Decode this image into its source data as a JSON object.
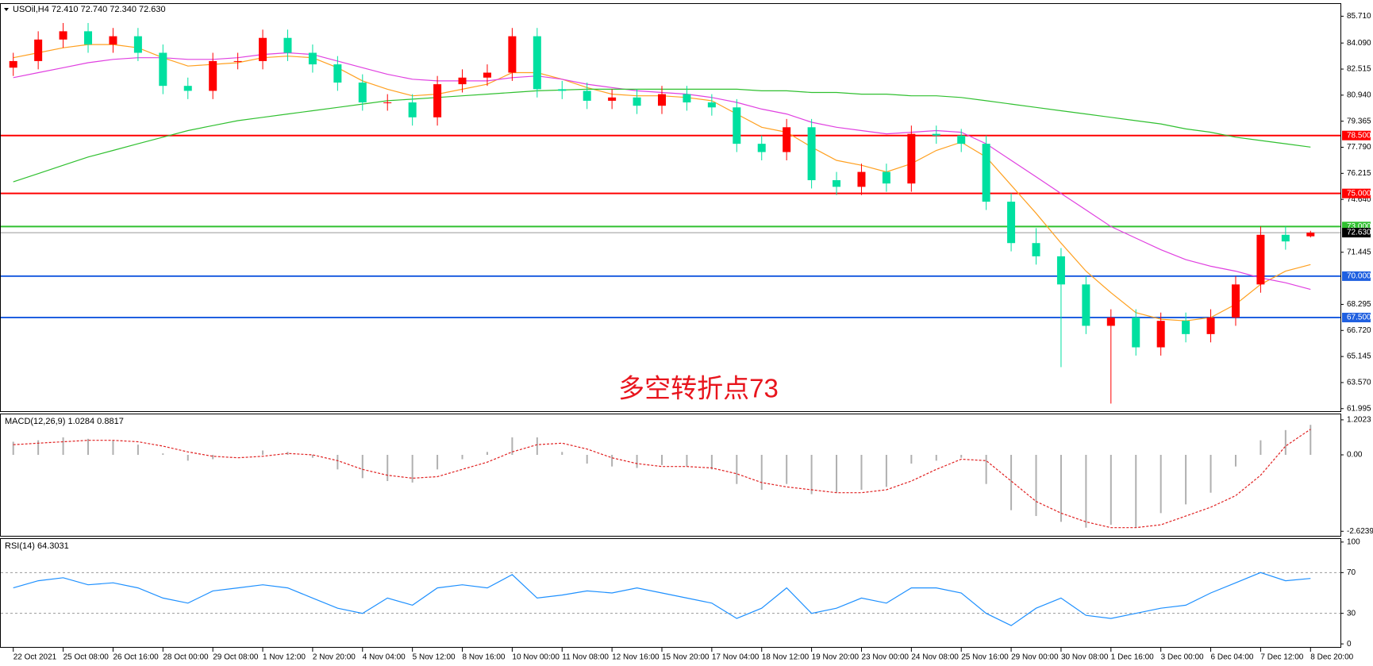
{
  "chart_data": [
    {
      "type": "candlestick",
      "title": "USOil,H4  72.410 72.740 72.340 72.630",
      "annotation": "多空转折点73",
      "up_color": "#ff0000",
      "down_color": "#00e0a0",
      "open": [
        82.6,
        83.0,
        84.3,
        84.8,
        84.0,
        84.5,
        83.5,
        81.5,
        81.2,
        83.0,
        83.0,
        84.4,
        83.5,
        82.8,
        81.7,
        80.5,
        80.5,
        79.6,
        81.6,
        82.0,
        82.3,
        84.5,
        81.3,
        81.2,
        80.6,
        80.8,
        80.3,
        81.0,
        80.5,
        80.2,
        78.0,
        77.5,
        79.0,
        75.8,
        75.4,
        76.3,
        75.6,
        78.6,
        78.5,
        78.0,
        74.5,
        72.0,
        71.2,
        69.5,
        67.0,
        67.5,
        65.7,
        67.3,
        66.5,
        67.5,
        69.5,
        72.5,
        72.41
      ],
      "high": [
        83.5,
        84.8,
        85.3,
        85.3,
        85.0,
        85.0,
        84.0,
        82.0,
        83.5,
        83.5,
        84.9,
        84.9,
        84.0,
        83.3,
        82.2,
        81.0,
        81.0,
        82.1,
        82.5,
        82.8,
        85.0,
        85.0,
        81.8,
        81.7,
        81.3,
        81.3,
        81.5,
        81.5,
        81.0,
        80.7,
        78.5,
        79.5,
        79.5,
        76.3,
        76.8,
        76.8,
        79.1,
        79.1,
        78.9,
        78.5,
        75.0,
        72.9,
        71.7,
        70.0,
        68.0,
        68.0,
        67.8,
        67.8,
        68.0,
        70.0,
        73.0,
        73.0,
        72.74
      ],
      "low": [
        82.1,
        82.5,
        83.8,
        83.5,
        83.5,
        83.0,
        81.0,
        80.7,
        80.7,
        82.5,
        82.5,
        83.0,
        82.3,
        81.2,
        80.0,
        80.0,
        79.1,
        79.1,
        81.1,
        81.5,
        81.8,
        80.8,
        80.7,
        80.1,
        80.1,
        79.8,
        79.8,
        80.0,
        79.7,
        77.5,
        77.0,
        77.0,
        75.3,
        74.9,
        74.9,
        75.1,
        75.1,
        78.0,
        77.5,
        74.0,
        71.5,
        70.7,
        64.5,
        66.5,
        62.3,
        65.2,
        65.2,
        66.0,
        66.0,
        67.0,
        69.0,
        71.6,
        72.34
      ],
      "close": [
        83.0,
        84.3,
        84.8,
        84.0,
        84.5,
        83.5,
        81.5,
        81.2,
        83.0,
        83.0,
        84.4,
        83.5,
        82.8,
        81.7,
        80.5,
        80.5,
        79.6,
        81.6,
        82.0,
        82.3,
        84.5,
        81.3,
        81.2,
        80.6,
        80.8,
        80.3,
        81.0,
        80.5,
        80.2,
        78.0,
        77.5,
        79.0,
        75.8,
        75.4,
        76.3,
        75.6,
        78.6,
        78.5,
        78.0,
        74.5,
        72.0,
        71.2,
        69.5,
        67.0,
        67.5,
        65.7,
        67.3,
        66.5,
        67.5,
        69.5,
        72.5,
        72.1,
        72.63
      ],
      "series": [
        {
          "color": "#ffa020",
          "values": [
            83.2,
            83.5,
            83.8,
            84.0,
            84.0,
            83.8,
            83.2,
            82.7,
            82.8,
            82.9,
            83.2,
            83.3,
            83.2,
            82.6,
            81.8,
            81.3,
            80.9,
            81.0,
            81.3,
            81.6,
            82.3,
            82.3,
            81.9,
            81.4,
            81.0,
            80.9,
            80.9,
            80.8,
            80.6,
            79.8,
            79.0,
            78.7,
            77.8,
            77.0,
            76.7,
            76.3,
            76.8,
            77.6,
            78.1,
            77.2,
            75.5,
            73.8,
            72.0,
            70.3,
            69.0,
            67.8,
            67.4,
            67.3,
            67.5,
            68.3,
            69.5,
            70.3,
            70.7
          ]
        },
        {
          "color": "#e040e0",
          "values": [
            82.0,
            82.3,
            82.6,
            82.9,
            83.1,
            83.2,
            83.2,
            83.1,
            83.1,
            83.2,
            83.4,
            83.5,
            83.4,
            83.0,
            82.6,
            82.2,
            81.9,
            81.8,
            81.8,
            81.8,
            82.0,
            82.1,
            81.9,
            81.6,
            81.4,
            81.2,
            81.1,
            81.0,
            80.8,
            80.5,
            80.1,
            79.8,
            79.3,
            79.0,
            78.8,
            78.6,
            78.7,
            78.8,
            78.7,
            78.0,
            77.0,
            76.0,
            75.0,
            74.0,
            73.0,
            72.3,
            71.6,
            71.0,
            70.6,
            70.3,
            69.9,
            69.6,
            69.2
          ]
        },
        {
          "color": "#30c030",
          "values": [
            75.7,
            76.2,
            76.7,
            77.2,
            77.6,
            78.0,
            78.4,
            78.8,
            79.1,
            79.4,
            79.6,
            79.8,
            80.0,
            80.2,
            80.4,
            80.6,
            80.7,
            80.8,
            80.9,
            81.0,
            81.1,
            81.2,
            81.25,
            81.3,
            81.3,
            81.3,
            81.3,
            81.3,
            81.3,
            81.3,
            81.2,
            81.2,
            81.1,
            81.1,
            81.0,
            81.0,
            80.9,
            80.9,
            80.8,
            80.6,
            80.4,
            80.2,
            80.0,
            79.8,
            79.6,
            79.4,
            79.2,
            78.9,
            78.7,
            78.4,
            78.2,
            78.0,
            77.8
          ]
        }
      ],
      "levels": [
        {
          "value": 78.5,
          "label": "78.500",
          "color": "#ff0000"
        },
        {
          "value": 75.0,
          "label": "75.000",
          "color": "#ff0000"
        },
        {
          "value": 73.0,
          "label": "73.000",
          "color": "#30c030"
        },
        {
          "value": 70.0,
          "label": "70.000",
          "color": "#2060e0"
        },
        {
          "value": 67.5,
          "label": "67.500",
          "color": "#2060e0"
        }
      ],
      "last_price": {
        "value": 72.63,
        "label": "72.630"
      },
      "ylim": [
        61.84,
        86.45
      ],
      "yticks": [
        {
          "value": 85.71,
          "label": "85.710"
        },
        {
          "value": 84.09,
          "label": "84.090"
        },
        {
          "value": 82.515,
          "label": "82.515"
        },
        {
          "value": 80.94,
          "label": "80.940"
        },
        {
          "value": 79.365,
          "label": "79.365"
        },
        {
          "value": 77.79,
          "label": "77.790"
        },
        {
          "value": 76.215,
          "label": "76.215"
        },
        {
          "value": 74.64,
          "label": "74.640"
        },
        {
          "value": 71.445,
          "label": "71.445"
        },
        {
          "value": 68.295,
          "label": "68.295"
        },
        {
          "value": 66.72,
          "label": "66.720"
        },
        {
          "value": 65.145,
          "label": "65.145"
        },
        {
          "value": 63.57,
          "label": "63.570"
        },
        {
          "value": 61.995,
          "label": "61.995"
        }
      ],
      "xlim": [
        -0.5,
        53.2
      ],
      "xticks": [
        {
          "value": 0,
          "label": "22 Oct 2021"
        },
        {
          "value": 2,
          "label": "25 Oct 08:00"
        },
        {
          "value": 4,
          "label": "26 Oct 16:00"
        },
        {
          "value": 6,
          "label": "28 Oct 00:00"
        },
        {
          "value": 8,
          "label": "29 Oct 08:00"
        },
        {
          "value": 10,
          "label": "1 Nov 12:00"
        },
        {
          "value": 12,
          "label": "2 Nov 20:00"
        },
        {
          "value": 14,
          "label": "4 Nov 04:00"
        },
        {
          "value": 16,
          "label": "5 Nov 12:00"
        },
        {
          "value": 18,
          "label": "8 Nov 16:00"
        },
        {
          "value": 20,
          "label": "10 Nov 00:00"
        },
        {
          "value": 22,
          "label": "11 Nov 08:00"
        },
        {
          "value": 24,
          "label": "12 Nov 16:00"
        },
        {
          "value": 26,
          "label": "15 Nov 20:00"
        },
        {
          "value": 28,
          "label": "17 Nov 04:00"
        },
        {
          "value": 30,
          "label": "18 Nov 12:00"
        },
        {
          "value": 32,
          "label": "19 Nov 20:00"
        },
        {
          "value": 34,
          "label": "23 Nov 00:00"
        },
        {
          "value": 36,
          "label": "24 Nov 08:00"
        },
        {
          "value": 38,
          "label": "25 Nov 16:00"
        },
        {
          "value": 40,
          "label": "29 Nov 00:00"
        },
        {
          "value": 42,
          "label": "30 Nov 08:00"
        },
        {
          "value": 44,
          "label": "1 Dec 16:00"
        },
        {
          "value": 46,
          "label": "3 Dec 00:00"
        },
        {
          "value": 48,
          "label": "6 Dec 04:00"
        },
        {
          "value": 50,
          "label": "7 Dec 12:00"
        },
        {
          "value": 52,
          "label": "8 Dec 20:00"
        }
      ]
    },
    {
      "type": "macd",
      "title": "MACD(12,26,9) 1.0284 0.8817",
      "color": "#b0b0b0",
      "values": [
        0.45,
        0.5,
        0.6,
        0.55,
        0.5,
        0.35,
        0.05,
        -0.2,
        -0.15,
        0.0,
        0.15,
        0.1,
        -0.1,
        -0.5,
        -0.8,
        -0.9,
        -0.95,
        -0.5,
        -0.15,
        0.1,
        0.6,
        0.6,
        0.1,
        -0.3,
        -0.4,
        -0.45,
        -0.35,
        -0.4,
        -0.5,
        -1.0,
        -1.2,
        -1.0,
        -1.35,
        -1.3,
        -1.2,
        -1.1,
        -0.3,
        -0.2,
        -0.1,
        -1.0,
        -1.9,
        -2.1,
        -2.3,
        -2.5,
        -2.4,
        -2.5,
        -2.0,
        -1.7,
        -1.3,
        -0.4,
        0.5,
        0.85,
        1.03
      ],
      "signal": {
        "color": "#e02020",
        "values": [
          0.35,
          0.4,
          0.45,
          0.5,
          0.5,
          0.45,
          0.3,
          0.1,
          -0.05,
          -0.1,
          -0.05,
          0.05,
          0.0,
          -0.2,
          -0.5,
          -0.7,
          -0.8,
          -0.75,
          -0.5,
          -0.25,
          0.1,
          0.35,
          0.4,
          0.2,
          -0.1,
          -0.3,
          -0.4,
          -0.4,
          -0.45,
          -0.65,
          -0.95,
          -1.1,
          -1.2,
          -1.3,
          -1.3,
          -1.2,
          -0.9,
          -0.5,
          -0.15,
          -0.2,
          -0.9,
          -1.6,
          -2.0,
          -2.3,
          -2.5,
          -2.5,
          -2.4,
          -2.1,
          -1.8,
          -1.4,
          -0.7,
          0.3,
          0.88
        ]
      },
      "ylim": [
        -2.78,
        1.39
      ],
      "yticks": [
        {
          "value": 1.2023,
          "label": "1.2023"
        },
        {
          "value": 0,
          "label": "0.00"
        },
        {
          "value": -2.6239,
          "label": "-2.6239"
        }
      ]
    },
    {
      "type": "line",
      "title": "RSI(14) 64.3031",
      "color": "#1e90ff",
      "values": [
        55,
        62,
        65,
        58,
        60,
        55,
        45,
        40,
        52,
        55,
        58,
        55,
        45,
        35,
        30,
        45,
        38,
        55,
        58,
        55,
        68,
        45,
        48,
        52,
        50,
        55,
        50,
        45,
        40,
        25,
        35,
        55,
        30,
        35,
        45,
        40,
        55,
        55,
        50,
        30,
        18,
        35,
        45,
        28,
        25,
        30,
        35,
        38,
        50,
        60,
        70,
        62,
        64.3
      ],
      "ylim": [
        -3,
        103
      ],
      "yticks": [
        100,
        70,
        30,
        0
      ],
      "dashed_levels": [
        70,
        30
      ]
    }
  ]
}
